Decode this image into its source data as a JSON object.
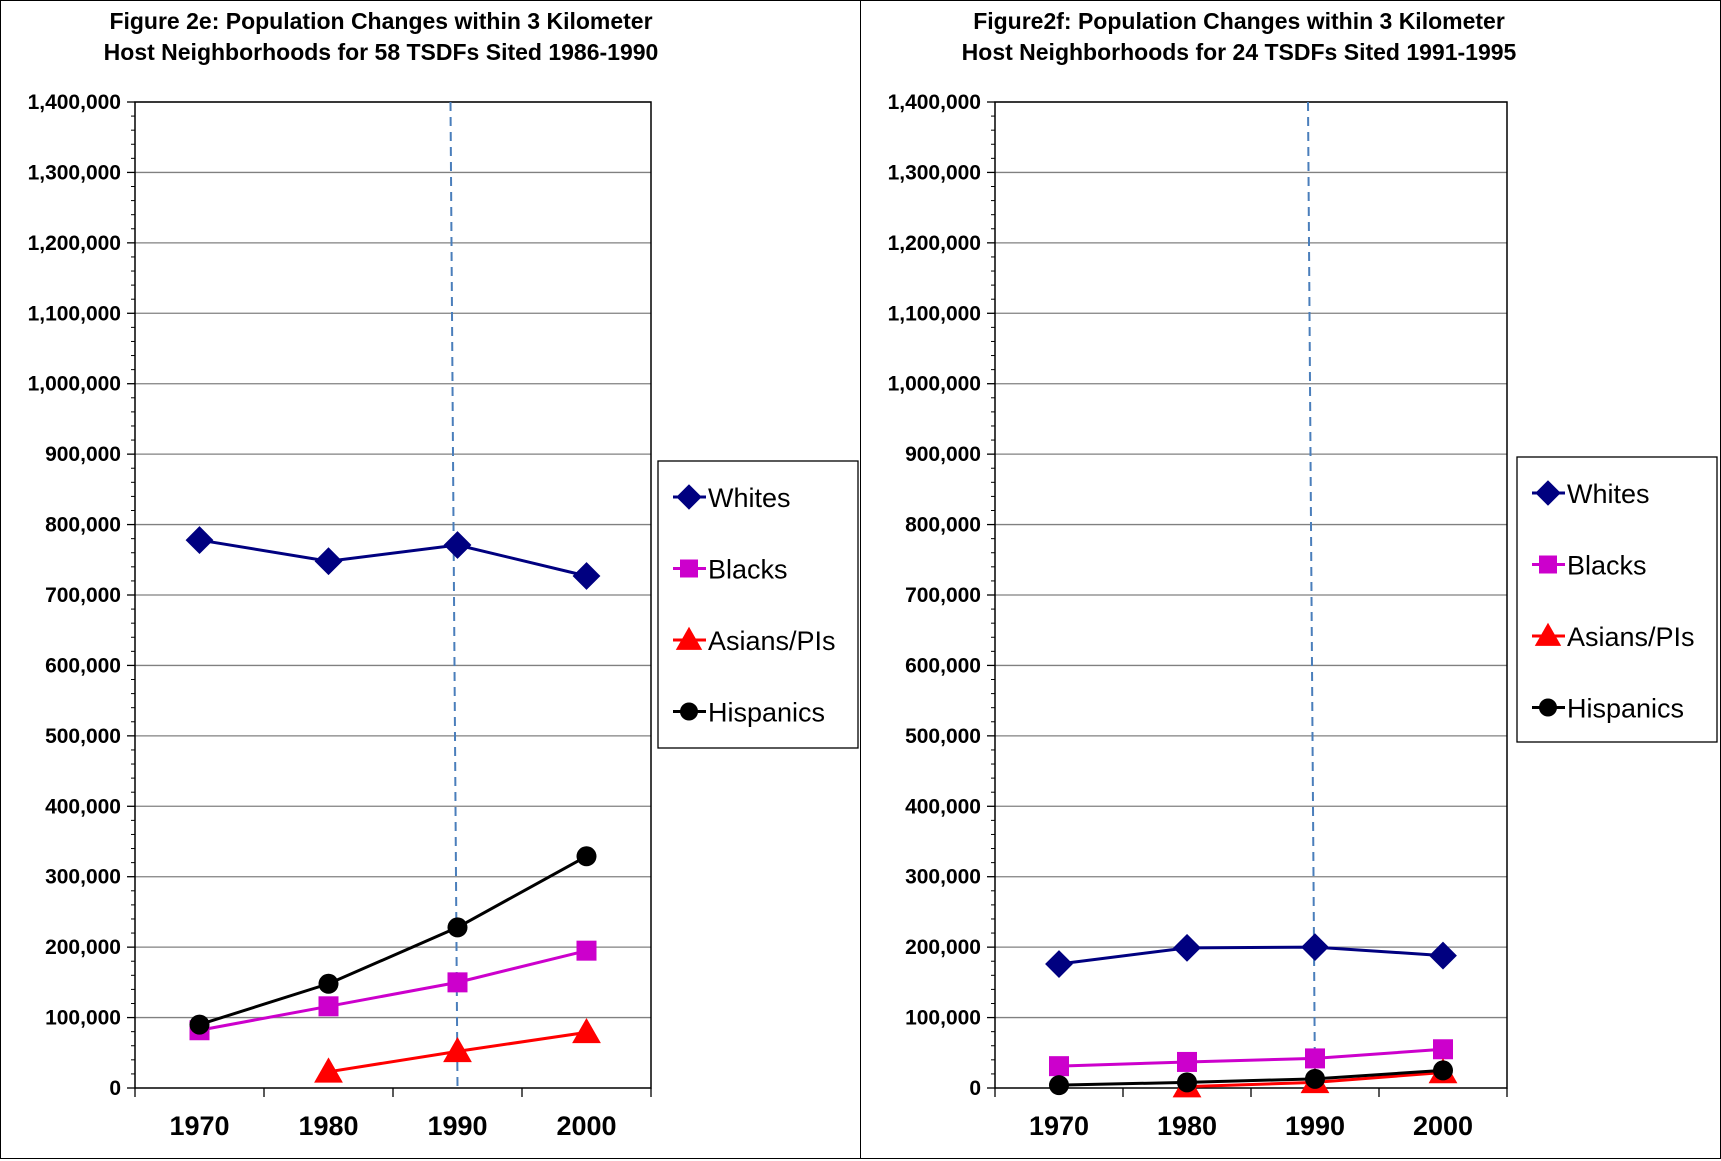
{
  "chart_data": [
    {
      "type": "line",
      "title_lines": [
        "Figure 2e: Population Changes within 3 Kilometer",
        "Host Neighborhoods for 58 TSDFs Sited 1986-1990"
      ],
      "xlabel": "",
      "ylabel": "",
      "categories": [
        "1970",
        "1980",
        "1990",
        "2000"
      ],
      "ylim": [
        0,
        1400000
      ],
      "yticks": [
        "0",
        "100,000",
        "200,000",
        "300,000",
        "400,000",
        "500,000",
        "600,000",
        "700,000",
        "800,000",
        "900,000",
        "1,000,000",
        "1,100,000",
        "1,200,000",
        "1,300,000",
        "1,400,000"
      ],
      "grid": true,
      "reference_line_x": 1990,
      "legend_position": "right",
      "series": [
        {
          "name": "Whites",
          "color": "#000080",
          "marker": "diamond",
          "values": [
            778000,
            748000,
            771000,
            727000
          ]
        },
        {
          "name": "Blacks",
          "color": "#CC00CC",
          "marker": "square",
          "values": [
            82000,
            116000,
            150000,
            195000
          ]
        },
        {
          "name": "Asians/PIs",
          "color": "#FF0000",
          "marker": "triangle",
          "values": [
            null,
            23000,
            52000,
            79000
          ]
        },
        {
          "name": "Hispanics",
          "color": "#000000",
          "marker": "circle",
          "values": [
            90000,
            148000,
            228000,
            329000
          ]
        }
      ]
    },
    {
      "type": "line",
      "title_lines": [
        "Figure2f: Population Changes within 3 Kilometer",
        "Host Neighborhoods for 24 TSDFs Sited 1991-1995"
      ],
      "xlabel": "",
      "ylabel": "",
      "categories": [
        "1970",
        "1980",
        "1990",
        "2000"
      ],
      "ylim": [
        0,
        1400000
      ],
      "yticks": [
        "0",
        "100,000",
        "200,000",
        "300,000",
        "400,000",
        "500,000",
        "600,000",
        "700,000",
        "800,000",
        "900,000",
        "1,000,000",
        "1,100,000",
        "1,200,000",
        "1,300,000",
        "1,400,000"
      ],
      "grid": true,
      "reference_line_x": 1990,
      "legend_position": "right",
      "series": [
        {
          "name": "Whites",
          "color": "#000080",
          "marker": "diamond",
          "values": [
            176000,
            199000,
            200000,
            188000
          ]
        },
        {
          "name": "Blacks",
          "color": "#CC00CC",
          "marker": "square",
          "values": [
            31000,
            37000,
            42000,
            55000
          ]
        },
        {
          "name": "Asians/PIs",
          "color": "#FF0000",
          "marker": "triangle",
          "values": [
            null,
            2000,
            8000,
            22000
          ]
        },
        {
          "name": "Hispanics",
          "color": "#000000",
          "marker": "circle",
          "values": [
            4000,
            8000,
            13000,
            25000
          ]
        }
      ]
    }
  ]
}
